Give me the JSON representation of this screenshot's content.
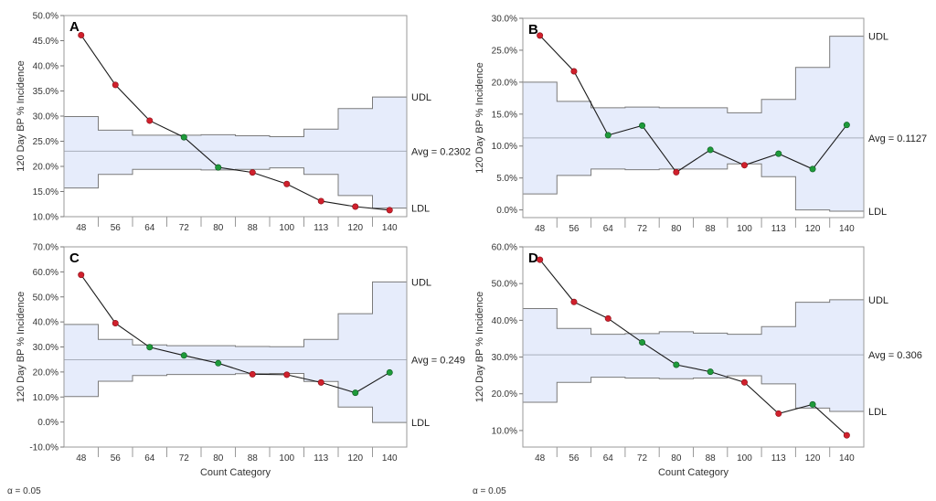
{
  "alpha_label_left": "α = 0.05",
  "alpha_label_right": "α = 0.05",
  "colors": {
    "band_fill": "#e6ecfb",
    "limit_line": "#7a7a7a",
    "avg_line": "#a8aebb",
    "series_line": "#1a1a1a",
    "point_out": "#d0202c",
    "point_in": "#1e9a3a"
  },
  "chart_data": [
    {
      "type": "line",
      "panel": "A",
      "ylabel": "120 Day BP % Incidence",
      "xlabel": "",
      "categories": [
        "48",
        "56",
        "64",
        "72",
        "80",
        "88",
        "100",
        "113",
        "120",
        "140"
      ],
      "ylim": [
        0.1,
        0.5
      ],
      "yticks": [
        0.1,
        0.15,
        0.2,
        0.25,
        0.3,
        0.35,
        0.4,
        0.45,
        0.5
      ],
      "ytick_labels": [
        "10.0%",
        "15.0%",
        "20.0%",
        "25.0%",
        "30.0%",
        "35.0%",
        "40.0%",
        "45.0%",
        "50.0%"
      ],
      "avg": 0.2302,
      "avg_label": "Avg = 0.2302",
      "udl_label": "UDL",
      "ldl_label": "LDL",
      "udl": [
        0.299,
        0.272,
        0.262,
        0.262,
        0.263,
        0.261,
        0.259,
        0.274,
        0.315,
        0.338
      ],
      "ldl": [
        0.157,
        0.184,
        0.194,
        0.194,
        0.193,
        0.194,
        0.197,
        0.184,
        0.142,
        0.117
      ],
      "values": [
        0.461,
        0.362,
        0.291,
        0.258,
        0.198,
        0.188,
        0.165,
        0.131,
        0.12,
        0.113
      ],
      "status": [
        "out",
        "out",
        "out",
        "in",
        "in",
        "out",
        "out",
        "out",
        "out",
        "out"
      ]
    },
    {
      "type": "line",
      "panel": "B",
      "ylabel": "120 Day BP % Incidence",
      "xlabel": "",
      "categories": [
        "48",
        "56",
        "64",
        "72",
        "80",
        "88",
        "100",
        "113",
        "120",
        "140"
      ],
      "ylim": [
        -0.012,
        0.3
      ],
      "yticks": [
        0.0,
        0.05,
        0.1,
        0.15,
        0.2,
        0.25,
        0.3
      ],
      "ytick_labels": [
        "0.0%",
        "5.0%",
        "10.0%",
        "15.0%",
        "20.0%",
        "25.0%",
        "30.0%"
      ],
      "avg": 0.1127,
      "avg_label": "Avg = 0.1127",
      "udl_label": "UDL",
      "ldl_label": "LDL",
      "udl": [
        0.2,
        0.17,
        0.16,
        0.161,
        0.16,
        0.16,
        0.152,
        0.173,
        0.223,
        0.272
      ],
      "ldl": [
        0.025,
        0.054,
        0.064,
        0.063,
        0.064,
        0.064,
        0.072,
        0.052,
        0.0,
        -0.002
      ],
      "values": [
        0.273,
        0.217,
        0.117,
        0.132,
        0.059,
        0.094,
        0.07,
        0.088,
        0.064,
        0.133
      ],
      "status": [
        "out",
        "out",
        "in",
        "in",
        "out",
        "in",
        "out",
        "in",
        "in",
        "in"
      ]
    },
    {
      "type": "line",
      "panel": "C",
      "ylabel": "120 Day BP % Incidence",
      "xlabel": "Count Category",
      "categories": [
        "48",
        "56",
        "64",
        "72",
        "80",
        "88",
        "100",
        "113",
        "120",
        "140"
      ],
      "ylim": [
        -0.1,
        0.7
      ],
      "yticks": [
        -0.1,
        0.0,
        0.1,
        0.2,
        0.3,
        0.4,
        0.5,
        0.6,
        0.7
      ],
      "ytick_labels": [
        "-10.0%",
        "0.0%",
        "10.0%",
        "20.0%",
        "30.0%",
        "40.0%",
        "50.0%",
        "60.0%",
        "70.0%"
      ],
      "avg": 0.249,
      "avg_label": "Avg = 0.249",
      "udl_label": "UDL",
      "ldl_label": "LDL",
      "udl": [
        0.39,
        0.33,
        0.308,
        0.305,
        0.305,
        0.302,
        0.301,
        0.33,
        0.433,
        0.56
      ],
      "ldl": [
        0.102,
        0.163,
        0.186,
        0.19,
        0.19,
        0.193,
        0.194,
        0.162,
        0.06,
        -0.002
      ],
      "values": [
        0.588,
        0.395,
        0.299,
        0.266,
        0.235,
        0.191,
        0.189,
        0.158,
        0.117,
        0.198
      ],
      "status": [
        "out",
        "out",
        "in",
        "in",
        "in",
        "out",
        "out",
        "out",
        "in",
        "in"
      ]
    },
    {
      "type": "line",
      "panel": "D",
      "ylabel": "120 Day BP % Incidence",
      "xlabel": "Count Category",
      "categories": [
        "48",
        "56",
        "64",
        "72",
        "80",
        "88",
        "100",
        "113",
        "120",
        "140"
      ],
      "ylim": [
        0.055,
        0.6
      ],
      "yticks": [
        0.1,
        0.2,
        0.3,
        0.4,
        0.5,
        0.6
      ],
      "ytick_labels": [
        "10.0%",
        "20.0%",
        "30.0%",
        "40.0%",
        "50.0%",
        "60.0%"
      ],
      "avg": 0.306,
      "avg_label": "Avg = 0.306",
      "udl_label": "UDL",
      "ldl_label": "LDL",
      "udl": [
        0.432,
        0.378,
        0.362,
        0.364,
        0.369,
        0.365,
        0.362,
        0.383,
        0.449,
        0.456
      ],
      "ldl": [
        0.177,
        0.231,
        0.245,
        0.243,
        0.241,
        0.243,
        0.249,
        0.227,
        0.161,
        0.152
      ],
      "values": [
        0.565,
        0.45,
        0.405,
        0.34,
        0.279,
        0.26,
        0.231,
        0.146,
        0.171,
        0.087
      ],
      "status": [
        "out",
        "out",
        "out",
        "in",
        "in",
        "in",
        "out",
        "out",
        "in",
        "out"
      ]
    }
  ]
}
